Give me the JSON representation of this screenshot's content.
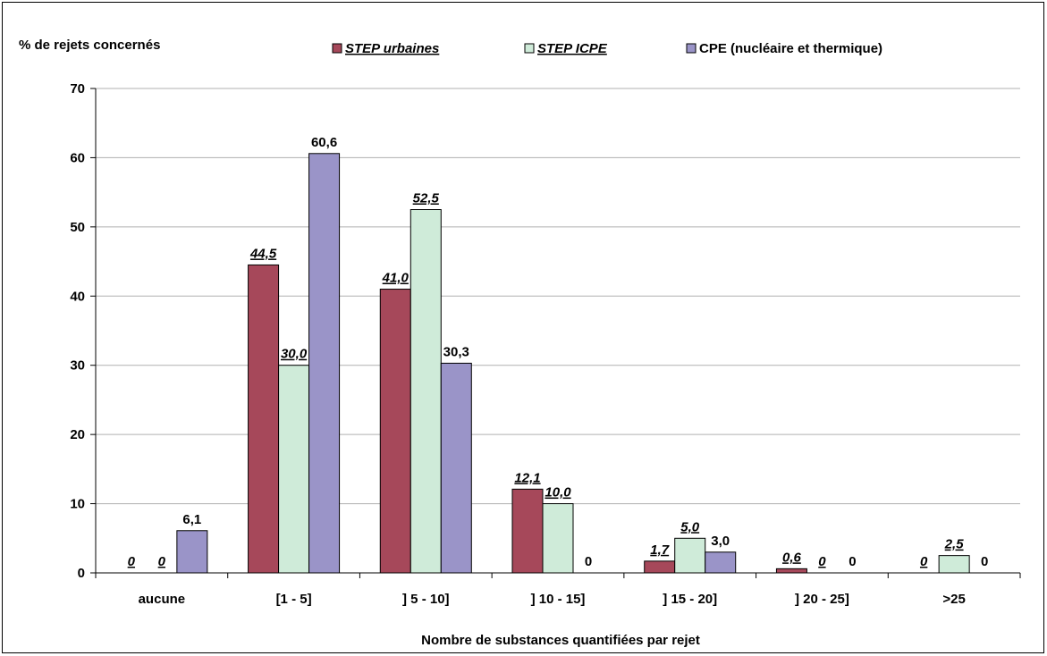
{
  "chart_data": {
    "type": "bar",
    "ylabel": "% de rejets concernés",
    "xlabel": "Nombre de substances quantifiées par rejet",
    "ylim": [
      0,
      70
    ],
    "yticks": [
      "0",
      "10",
      "20",
      "30",
      "40",
      "50",
      "60",
      "70"
    ],
    "grid": true,
    "legend_position": "top",
    "categories": [
      "aucune",
      "[1 - 5]",
      "] 5 - 10]",
      "] 10 - 15]",
      "] 15 - 20]",
      "] 20 - 25]",
      ">25"
    ],
    "series": [
      {
        "name": "STEP urbaines",
        "color": "#A6485A",
        "label_style": "italic-underline",
        "values": [
          0,
          44.5,
          41.0,
          12.1,
          1.7,
          0.6,
          0
        ],
        "labels": [
          "0",
          "44,5",
          "41,0",
          "12,1",
          "1,7",
          "0,6",
          "0"
        ]
      },
      {
        "name": "STEP ICPE",
        "color": "#CFEBD9",
        "label_style": "italic-underline",
        "values": [
          0,
          30.0,
          52.5,
          10.0,
          5.0,
          0,
          2.5
        ],
        "labels": [
          "0",
          "30,0",
          "52,5",
          "10,0",
          "5,0",
          "0",
          "2,5"
        ]
      },
      {
        "name": "CPE (nucléaire et thermique)",
        "color": "#9A94C8",
        "label_style": "plain",
        "values": [
          6.1,
          60.6,
          30.3,
          0,
          3.0,
          0,
          0
        ],
        "labels": [
          "6,1",
          "60,6",
          "30,3",
          "0",
          "3,0",
          "0",
          "0"
        ]
      }
    ]
  }
}
